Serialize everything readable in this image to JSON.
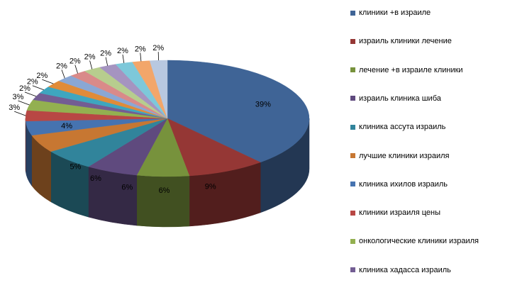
{
  "chart_data": {
    "type": "pie",
    "style": "3d-pie",
    "legend_position": "right",
    "slices": [
      {
        "label": "клиники +в израиле",
        "value": 39,
        "value_label": "39%",
        "color": "#3f6496"
      },
      {
        "label": "израиль клиники лечение",
        "value": 9,
        "value_label": "9%",
        "color": "#953735"
      },
      {
        "label": "лечение +в израиле клиники",
        "value": 6,
        "value_label": "6%",
        "color": "#77923c"
      },
      {
        "label": "израиль клиника шиба",
        "value": 6,
        "value_label": "6%",
        "color": "#5f4a7e"
      },
      {
        "label": "клиника ассута израиль",
        "value": 6,
        "value_label": "6%",
        "color": "#31849b"
      },
      {
        "label": "лучшие клиники израиля",
        "value": 5,
        "value_label": "5%",
        "color": "#c77732"
      },
      {
        "label": "клиника ихилов израиль",
        "value": 4,
        "value_label": "4%",
        "color": "#4673b0"
      },
      {
        "label": "клиники израиля цены",
        "value": 3,
        "value_label": "3%",
        "color": "#b84744"
      },
      {
        "label": "онкологические клиники израиля",
        "value": 3,
        "value_label": "3%",
        "color": "#93b050"
      },
      {
        "label": "клиника хадасса израиль",
        "value": 2,
        "value_label": "2%",
        "color": "#735d93"
      },
      {
        "label": "",
        "value": 2,
        "value_label": "2%",
        "color": "#3ea6bf"
      },
      {
        "label": "",
        "value": 2,
        "value_label": "2%",
        "color": "#e08b39"
      },
      {
        "label": "",
        "value": 2,
        "value_label": "2%",
        "color": "#8aa7d4"
      },
      {
        "label": "",
        "value": 2,
        "value_label": "2%",
        "color": "#d98a89"
      },
      {
        "label": "",
        "value": 2,
        "value_label": "2%",
        "color": "#b7cd8e"
      },
      {
        "label": "",
        "value": 2,
        "value_label": "2%",
        "color": "#a594c0"
      },
      {
        "label": "",
        "value": 2,
        "value_label": "2%",
        "color": "#7dc8da"
      },
      {
        "label": "",
        "value": 2,
        "value_label": "2%",
        "color": "#f2a66a"
      },
      {
        "label": "",
        "value": 2,
        "value_label": "2%",
        "color": "#b8c8e0"
      }
    ],
    "legend_entries": [
      "клиники +в израиле",
      "израиль клиники лечение",
      "лечение +в израиле клиники",
      "израиль клиника шиба",
      "клиника ассута израиль",
      "лучшие клиники израиля",
      "клиника ихилов израиль",
      "клиники израиля цены",
      "онкологические клиники израиля",
      "клиника хадасса израиль"
    ]
  }
}
